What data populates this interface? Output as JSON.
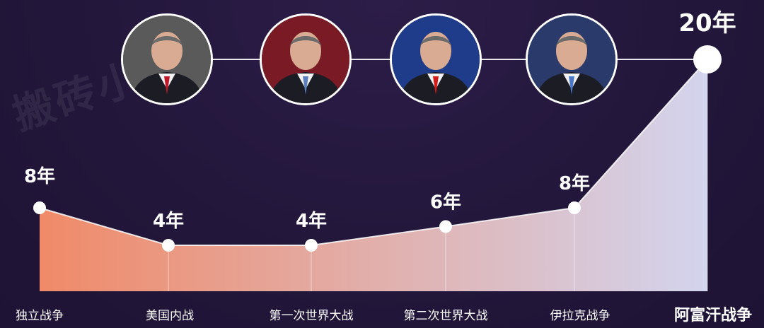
{
  "watermark": "搬砖小",
  "portraits": [
    {
      "name": "portrait-1",
      "bg": "#5a5a5a",
      "tie": "#c0172a"
    },
    {
      "name": "portrait-2",
      "bg": "#7a1a24",
      "tie": "#5a7fbf"
    },
    {
      "name": "portrait-3",
      "bg": "#1f3c8a",
      "tie": "#d41a1a"
    },
    {
      "name": "portrait-4",
      "bg": "#2a3a6a",
      "tie": "#4a78c8"
    }
  ],
  "chart_data": {
    "type": "area",
    "categories": [
      "独立战争",
      "美国内战",
      "第一次世界大战",
      "第二次世界大战",
      "伊拉克战争",
      "阿富汗战争"
    ],
    "values": [
      8,
      4,
      4,
      6,
      8,
      20
    ],
    "value_labels": [
      "8年",
      "4年",
      "4年",
      "6年",
      "8年",
      "20年"
    ],
    "unit": "年",
    "ylim": [
      0,
      20
    ],
    "grid": false,
    "legend": "none",
    "colors": {
      "fill_start": "#f08a68",
      "fill_end": "#d3d4ee",
      "line": "#ffffff",
      "marker": "#ffffff"
    }
  }
}
